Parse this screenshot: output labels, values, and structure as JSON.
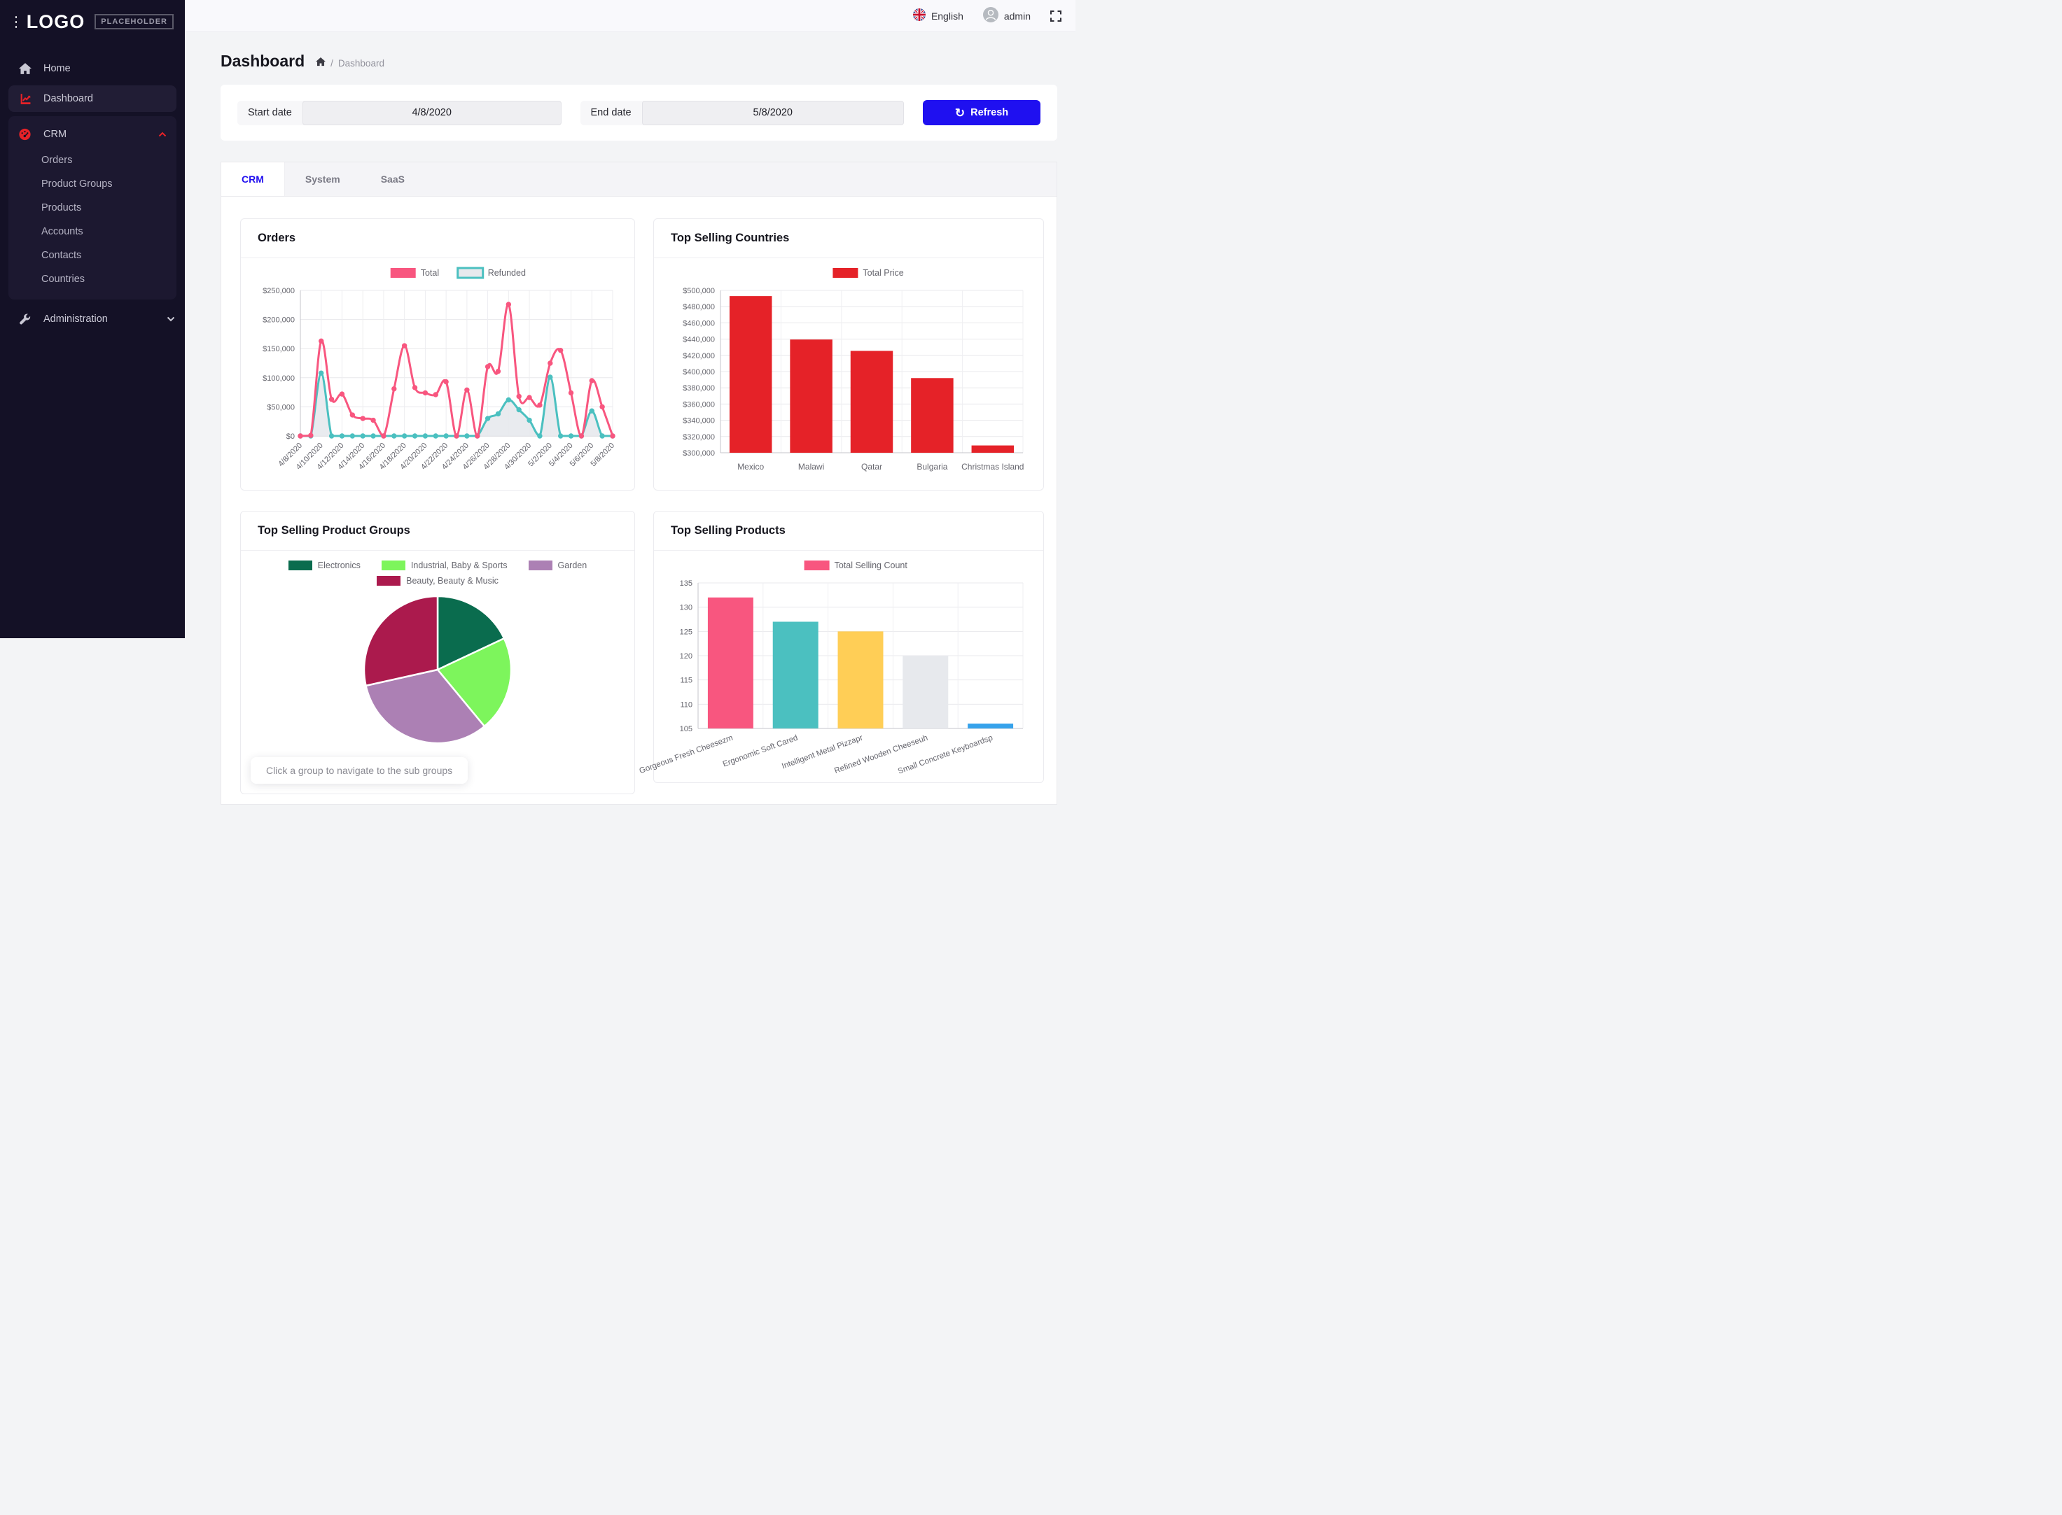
{
  "topbar": {
    "language": "English",
    "user": "admin"
  },
  "sidebar": {
    "logo_text": "LOGO",
    "logo_badge": "PLACEHOLDER",
    "home": "Home",
    "dashboard": "Dashboard",
    "crm": "CRM",
    "crm_children": [
      "Orders",
      "Product Groups",
      "Products",
      "Accounts",
      "Contacts",
      "Countries"
    ],
    "administration": "Administration"
  },
  "page": {
    "title": "Dashboard",
    "breadcrumb_current": "Dashboard"
  },
  "filters": {
    "start_label": "Start date",
    "start_value": "4/8/2020",
    "end_label": "End date",
    "end_value": "5/8/2020",
    "refresh_label": "Refresh"
  },
  "tabs": {
    "items": [
      "CRM",
      "System",
      "SaaS"
    ],
    "active_index": 0
  },
  "colors": {
    "accent_red": "#e52228",
    "accent_blue": "#1f10f0",
    "sidebar_bg": "#141126",
    "pink": "#f8567f",
    "teal": "#4bc0c0",
    "yellow": "#ffce56",
    "gray": "#e7e9ed",
    "blue": "#36a2eb"
  },
  "chart_data": [
    {
      "type": "line",
      "title": "Orders",
      "x": [
        "4/8/2020",
        "4/9/2020",
        "4/10/2020",
        "4/11/2020",
        "4/12/2020",
        "4/13/2020",
        "4/14/2020",
        "4/15/2020",
        "4/16/2020",
        "4/17/2020",
        "4/18/2020",
        "4/19/2020",
        "4/20/2020",
        "4/21/2020",
        "4/22/2020",
        "4/23/2020",
        "4/24/2020",
        "4/25/2020",
        "4/26/2020",
        "4/27/2020",
        "4/28/2020",
        "4/29/2020",
        "4/30/2020",
        "5/1/2020",
        "5/2/2020",
        "5/3/2020",
        "5/4/2020",
        "5/5/2020",
        "5/6/2020",
        "5/7/2020",
        "5/8/2020"
      ],
      "x_label_every": 2,
      "ylim": [
        0,
        250000
      ],
      "ytick": 50000,
      "y_format": "usd",
      "legend_position": "top",
      "series": [
        {
          "name": "Total",
          "color": "#f8567f",
          "values": [
            0,
            1000,
            163000,
            63000,
            72000,
            36000,
            30000,
            27000,
            0,
            81000,
            155000,
            83000,
            74000,
            71000,
            93000,
            0,
            79000,
            0,
            119000,
            111000,
            226000,
            68000,
            66000,
            53000,
            125000,
            147000,
            74000,
            0,
            95000,
            50000,
            0
          ]
        },
        {
          "name": "Refunded",
          "color": "#4bc0c0",
          "fill": "#e7e9ed",
          "legend_fill": "#e7e9ed",
          "values": [
            0,
            0,
            108000,
            0,
            0,
            0,
            0,
            0,
            0,
            0,
            0,
            0,
            0,
            0,
            0,
            0,
            0,
            0,
            30000,
            38000,
            62000,
            45000,
            27000,
            0,
            101000,
            0,
            0,
            0,
            43000,
            0,
            0
          ]
        }
      ]
    },
    {
      "type": "bar",
      "title": "Top Selling Countries",
      "categories": [
        "Mexico",
        "Malawi",
        "Qatar",
        "Bulgaria",
        "Christmas Island"
      ],
      "values": [
        493000,
        439500,
        425500,
        392000,
        309000
      ],
      "colors": [
        "#e52228"
      ],
      "ylim": [
        300000,
        500000
      ],
      "ytick": 20000,
      "y_format": "usd",
      "legend": {
        "label": "Total Price",
        "color": "#e52228"
      },
      "label_rotate": 0
    },
    {
      "type": "pie",
      "title": "Top Selling Product Groups",
      "labels": [
        "Electronics",
        "Industrial, Baby & Sports",
        "Garden",
        "Beauty, Beauty & Music"
      ],
      "values": [
        18,
        21,
        32.5,
        28.5
      ],
      "colors": [
        "#0a6c4e",
        "#7df55c",
        "#ac80b4",
        "#ab1a4d"
      ],
      "note": "Click a group to navigate to the sub groups"
    },
    {
      "type": "bar",
      "title": "Top Selling Products",
      "categories": [
        "Gorgeous Fresh Cheesezm",
        "Ergonomic Soft Cared",
        "Intelligent Metal Pizzapr",
        "Refined Wooden Cheeseuh",
        "Small Concrete Keyboardsp"
      ],
      "values": [
        132,
        127,
        125,
        120,
        106
      ],
      "colors": [
        "#f8567f",
        "#4bc0c0",
        "#ffce56",
        "#e7e9ed",
        "#36a2eb"
      ],
      "ylim": [
        105,
        135
      ],
      "ytick": 5,
      "y_format": "plain",
      "legend": {
        "label": "Total Selling Count",
        "color": "#f8567f"
      },
      "label_rotate": -20
    }
  ]
}
